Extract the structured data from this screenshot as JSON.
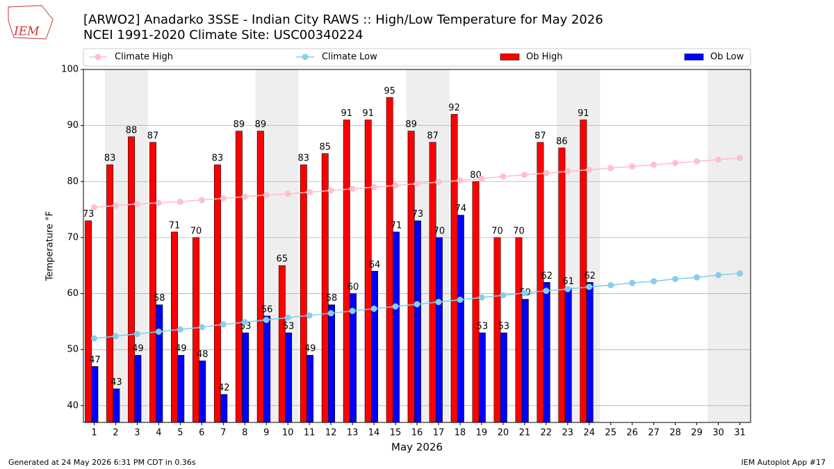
{
  "chart_data": {
    "type": "bar",
    "title": "[ARWO2] Anadarko 3SSE - Indian City RAWS :: High/Low Temperature for May 2026",
    "subtitle": "NCEI 1991-2020 Climate Site: USC00340224",
    "xlabel": "May 2026",
    "ylabel": "Temperature °F",
    "logo": "IEM",
    "footer_left": "Generated at 24 May 2026 6:31 PM CDT in 0.36s",
    "footer_right": "IEM Autoplot App #17",
    "x": [
      1,
      2,
      3,
      4,
      5,
      6,
      7,
      8,
      9,
      10,
      11,
      12,
      13,
      14,
      15,
      16,
      17,
      18,
      19,
      20,
      21,
      22,
      23,
      24,
      25,
      26,
      27,
      28,
      29,
      30,
      31
    ],
    "xlim": [
      0.5,
      31.5
    ],
    "xticks": [
      1,
      2,
      3,
      4,
      5,
      6,
      7,
      8,
      9,
      10,
      11,
      12,
      13,
      14,
      15,
      16,
      17,
      18,
      19,
      20,
      21,
      22,
      23,
      24,
      25,
      26,
      27,
      28,
      29,
      30,
      31
    ],
    "ylim": [
      37,
      100
    ],
    "yticks": [
      40,
      50,
      60,
      70,
      80,
      90,
      100
    ],
    "grid": true,
    "weekends": [
      2,
      3,
      9,
      10,
      16,
      17,
      23,
      24,
      30,
      31
    ],
    "series": [
      {
        "name": "Climate High",
        "type": "line",
        "color": "#ffc0cb",
        "values": [
          75.4,
          75.7,
          76.0,
          76.2,
          76.4,
          76.7,
          77.0,
          77.3,
          77.6,
          77.8,
          78.1,
          78.4,
          78.7,
          79.0,
          79.3,
          79.6,
          79.9,
          80.2,
          80.5,
          80.9,
          81.2,
          81.5,
          81.8,
          82.1,
          82.4,
          82.7,
          83.0,
          83.3,
          83.6,
          83.9,
          84.2
        ]
      },
      {
        "name": "Climate Low",
        "type": "line",
        "color": "#87ceeb",
        "values": [
          52.0,
          52.4,
          52.8,
          53.2,
          53.6,
          54.0,
          54.5,
          54.9,
          55.3,
          55.7,
          56.1,
          56.5,
          56.9,
          57.3,
          57.7,
          58.1,
          58.5,
          58.9,
          59.3,
          59.7,
          60.1,
          60.5,
          60.8,
          61.2,
          61.5,
          61.9,
          62.2,
          62.6,
          62.9,
          63.3,
          63.6
        ]
      },
      {
        "name": "Ob High",
        "type": "bar",
        "color": "#ff0000",
        "values": [
          73,
          83,
          88,
          87,
          71,
          70,
          83,
          89,
          89,
          65,
          83,
          85,
          91,
          91,
          95,
          89,
          87,
          92,
          80,
          70,
          70,
          87,
          86,
          91,
          null,
          null,
          null,
          null,
          null,
          null,
          null
        ]
      },
      {
        "name": "Ob Low",
        "type": "bar",
        "color": "#0000ff",
        "values": [
          47,
          43,
          49,
          58,
          49,
          48,
          42,
          53,
          56,
          53,
          49,
          58,
          60,
          64,
          71,
          73,
          70,
          74,
          53,
          53,
          59,
          62,
          61,
          62,
          null,
          null,
          null,
          null,
          null,
          null,
          null
        ]
      }
    ]
  }
}
